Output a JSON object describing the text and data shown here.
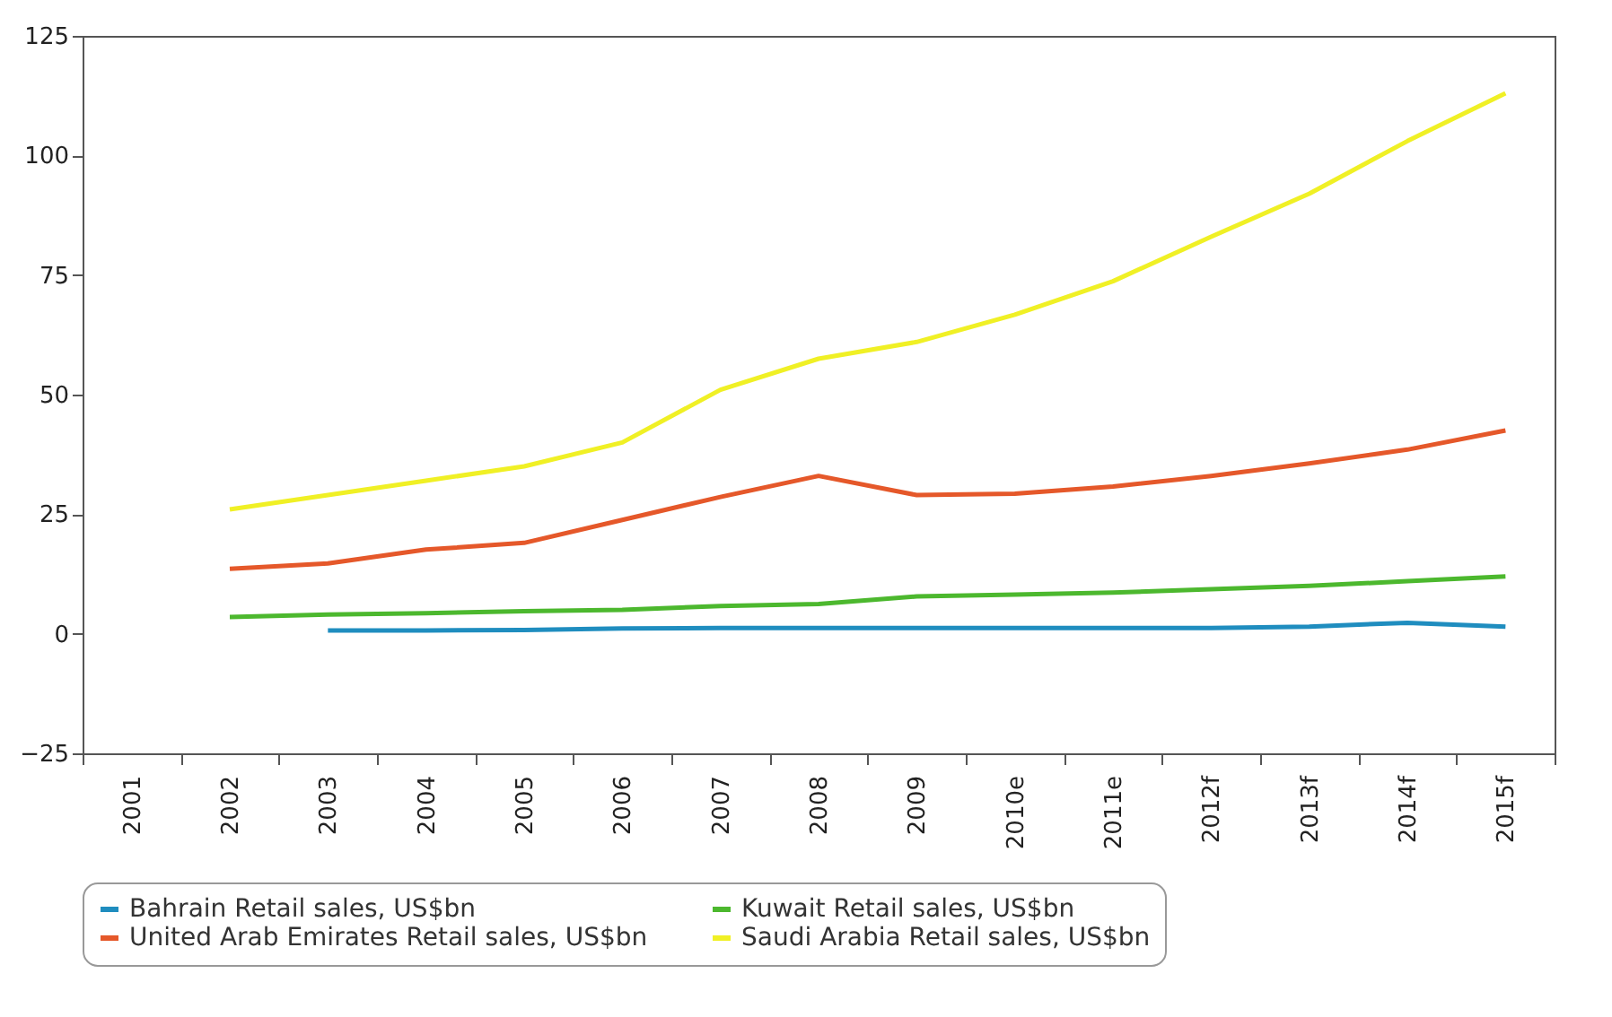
{
  "chart_data": {
    "type": "line",
    "categories": [
      "2001",
      "2002",
      "2003",
      "2004",
      "2005",
      "2006",
      "2007",
      "2008",
      "2009",
      "2010e",
      "2011e",
      "2012f",
      "2013f",
      "2014f",
      "2015f"
    ],
    "series": [
      {
        "name": "Bahrain Retail sales, US$bn",
        "color": "#1f8dbf",
        "values": [
          null,
          null,
          0.7,
          0.7,
          0.8,
          1.1,
          1.2,
          1.2,
          1.2,
          1.2,
          1.2,
          1.2,
          1.5,
          2.3,
          1.5
        ]
      },
      {
        "name": "Kuwait Retail sales, US$bn",
        "color": "#4cb82e",
        "values": [
          null,
          3.5,
          4,
          4.3,
          4.7,
          5,
          5.8,
          6.2,
          7.8,
          8.2,
          8.6,
          9.3,
          10,
          11,
          12
        ]
      },
      {
        "name": "United Arab Emirates Retail sales, US$bn",
        "color": "#e5582a",
        "values": [
          null,
          13.6,
          14.7,
          17.6,
          19,
          23.8,
          28.6,
          33,
          29,
          29.3,
          30.8,
          33,
          35.6,
          38.5,
          42.5
        ]
      },
      {
        "name": "Saudi Arabia Retail sales, US$bn",
        "color": "#f0f025",
        "values": [
          null,
          26,
          29,
          32,
          35,
          40,
          51,
          57.5,
          61,
          66.7,
          73.7,
          83,
          92,
          103,
          113
        ]
      }
    ],
    "ylim": [
      -25,
      125
    ],
    "yticks": [
      -25,
      0,
      25,
      50,
      75,
      100,
      125
    ],
    "grid": false,
    "legend": "bottom",
    "marker": "none"
  }
}
